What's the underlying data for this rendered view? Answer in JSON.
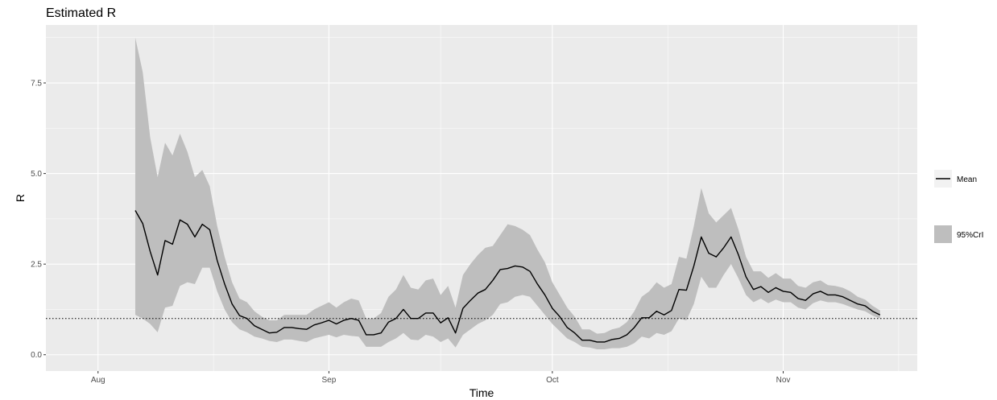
{
  "chart_data": {
    "type": "line",
    "title": "Estimated R",
    "xlabel": "Time",
    "ylabel": "R",
    "x_ticks": [
      {
        "label": "Aug",
        "date": "2020-08-01"
      },
      {
        "label": "Sep",
        "date": "2020-09-01"
      },
      {
        "label": "Oct",
        "date": "2020-10-01"
      },
      {
        "label": "Nov",
        "date": "2020-11-01"
      }
    ],
    "y_ticks": [
      0.0,
      2.5,
      5.0,
      7.5
    ],
    "y_tick_labels": [
      "0.0",
      "2.5",
      "5.0",
      "7.5"
    ],
    "xlim": [
      "2020-07-25",
      "2020-11-19"
    ],
    "ylim": [
      -0.45,
      9.1
    ],
    "reference_line": {
      "y": 1,
      "style": "dotted"
    },
    "legend": {
      "placement": "right",
      "entries": [
        {
          "label": "Mean",
          "kind": "line"
        },
        {
          "label": "95%CrI",
          "kind": "band"
        }
      ]
    },
    "colors": {
      "panel": "#ebebeb",
      "grid": "#ffffff",
      "mean_line": "#000000",
      "band": "#bebebe"
    },
    "series": [
      {
        "name": "Mean",
        "x": [
          "2020-08-06",
          "2020-08-07",
          "2020-08-08",
          "2020-08-09",
          "2020-08-10",
          "2020-08-11",
          "2020-08-12",
          "2020-08-13",
          "2020-08-14",
          "2020-08-15",
          "2020-08-16",
          "2020-08-17",
          "2020-08-18",
          "2020-08-19",
          "2020-08-20",
          "2020-08-21",
          "2020-08-22",
          "2020-08-23",
          "2020-08-24",
          "2020-08-25",
          "2020-08-26",
          "2020-08-27",
          "2020-08-28",
          "2020-08-29",
          "2020-08-30",
          "2020-08-31",
          "2020-09-01",
          "2020-09-02",
          "2020-09-03",
          "2020-09-04",
          "2020-09-05",
          "2020-09-06",
          "2020-09-07",
          "2020-09-08",
          "2020-09-09",
          "2020-09-10",
          "2020-09-11",
          "2020-09-12",
          "2020-09-13",
          "2020-09-14",
          "2020-09-15",
          "2020-09-16",
          "2020-09-17",
          "2020-09-18",
          "2020-09-19",
          "2020-09-20",
          "2020-09-21",
          "2020-09-22",
          "2020-09-23",
          "2020-09-24",
          "2020-09-25",
          "2020-09-26",
          "2020-09-27",
          "2020-09-28",
          "2020-09-29",
          "2020-09-30",
          "2020-10-01",
          "2020-10-02",
          "2020-10-03",
          "2020-10-04",
          "2020-10-05",
          "2020-10-06",
          "2020-10-07",
          "2020-10-08",
          "2020-10-09",
          "2020-10-10",
          "2020-10-11",
          "2020-10-12",
          "2020-10-13",
          "2020-10-14",
          "2020-10-15",
          "2020-10-16",
          "2020-10-17",
          "2020-10-18",
          "2020-10-19",
          "2020-10-20",
          "2020-10-21",
          "2020-10-22",
          "2020-10-23",
          "2020-10-24",
          "2020-10-25",
          "2020-10-26",
          "2020-10-27",
          "2020-10-28",
          "2020-10-29",
          "2020-10-30",
          "2020-10-31",
          "2020-11-01",
          "2020-11-02",
          "2020-11-03",
          "2020-11-04",
          "2020-11-05",
          "2020-11-06",
          "2020-11-07",
          "2020-11-08",
          "2020-11-09",
          "2020-11-10",
          "2020-11-11",
          "2020-11-12",
          "2020-11-13",
          "2020-11-14"
        ],
        "mean": [
          3.98,
          3.62,
          2.85,
          2.2,
          3.15,
          3.05,
          3.72,
          3.6,
          3.25,
          3.6,
          3.45,
          2.6,
          1.95,
          1.4,
          1.08,
          1.0,
          0.8,
          0.7,
          0.6,
          0.62,
          0.75,
          0.75,
          0.72,
          0.7,
          0.82,
          0.88,
          0.95,
          0.85,
          0.95,
          1.0,
          0.95,
          0.55,
          0.55,
          0.6,
          0.9,
          1.0,
          1.25,
          1.0,
          1.0,
          1.15,
          1.15,
          0.88,
          1.02,
          0.6,
          1.28,
          1.5,
          1.7,
          1.8,
          2.05,
          2.35,
          2.38,
          2.45,
          2.42,
          2.3,
          1.95,
          1.65,
          1.28,
          1.05,
          0.75,
          0.6,
          0.4,
          0.4,
          0.35,
          0.35,
          0.42,
          0.45,
          0.55,
          0.75,
          1.02,
          1.02,
          1.2,
          1.1,
          1.22,
          1.8,
          1.78,
          2.45,
          3.25,
          2.8,
          2.7,
          2.95,
          3.25,
          2.75,
          2.15,
          1.8,
          1.88,
          1.72,
          1.85,
          1.75,
          1.72,
          1.55,
          1.5,
          1.68,
          1.75,
          1.65,
          1.65,
          1.6,
          1.5,
          1.4,
          1.35,
          1.2,
          1.1
        ],
        "lower": [
          1.1,
          1.0,
          0.85,
          0.62,
          1.3,
          1.35,
          1.9,
          2.0,
          1.95,
          2.4,
          2.4,
          1.75,
          1.25,
          0.9,
          0.7,
          0.62,
          0.5,
          0.45,
          0.38,
          0.35,
          0.42,
          0.42,
          0.38,
          0.35,
          0.45,
          0.5,
          0.55,
          0.48,
          0.55,
          0.52,
          0.5,
          0.22,
          0.22,
          0.22,
          0.35,
          0.45,
          0.6,
          0.42,
          0.4,
          0.55,
          0.5,
          0.35,
          0.45,
          0.2,
          0.55,
          0.7,
          0.85,
          0.95,
          1.1,
          1.4,
          1.45,
          1.6,
          1.65,
          1.6,
          1.35,
          1.1,
          0.85,
          0.65,
          0.45,
          0.35,
          0.22,
          0.2,
          0.15,
          0.15,
          0.18,
          0.18,
          0.22,
          0.32,
          0.5,
          0.45,
          0.6,
          0.55,
          0.65,
          1.0,
          0.95,
          1.4,
          2.15,
          1.85,
          1.85,
          2.2,
          2.5,
          2.1,
          1.65,
          1.45,
          1.55,
          1.42,
          1.52,
          1.45,
          1.45,
          1.3,
          1.25,
          1.42,
          1.5,
          1.45,
          1.45,
          1.4,
          1.32,
          1.25,
          1.2,
          1.08,
          1.0
        ],
        "upper": [
          8.75,
          7.8,
          6.0,
          4.9,
          5.85,
          5.5,
          6.1,
          5.6,
          4.9,
          5.1,
          4.65,
          3.55,
          2.7,
          2.0,
          1.55,
          1.45,
          1.2,
          1.05,
          0.95,
          0.95,
          1.1,
          1.1,
          1.1,
          1.1,
          1.25,
          1.35,
          1.45,
          1.3,
          1.45,
          1.55,
          1.5,
          1.0,
          1.0,
          1.15,
          1.6,
          1.8,
          2.2,
          1.85,
          1.8,
          2.05,
          2.1,
          1.65,
          1.9,
          1.3,
          2.2,
          2.5,
          2.75,
          2.95,
          3.0,
          3.3,
          3.6,
          3.55,
          3.45,
          3.3,
          2.9,
          2.55,
          2.0,
          1.65,
          1.3,
          1.05,
          0.7,
          0.7,
          0.58,
          0.6,
          0.7,
          0.75,
          0.9,
          1.2,
          1.6,
          1.75,
          2.0,
          1.85,
          1.95,
          2.7,
          2.65,
          3.55,
          4.6,
          3.9,
          3.65,
          3.85,
          4.05,
          3.45,
          2.7,
          2.3,
          2.3,
          2.12,
          2.25,
          2.1,
          2.1,
          1.9,
          1.85,
          2.0,
          2.05,
          1.92,
          1.9,
          1.85,
          1.75,
          1.6,
          1.52,
          1.35,
          1.22
        ]
      }
    ]
  }
}
